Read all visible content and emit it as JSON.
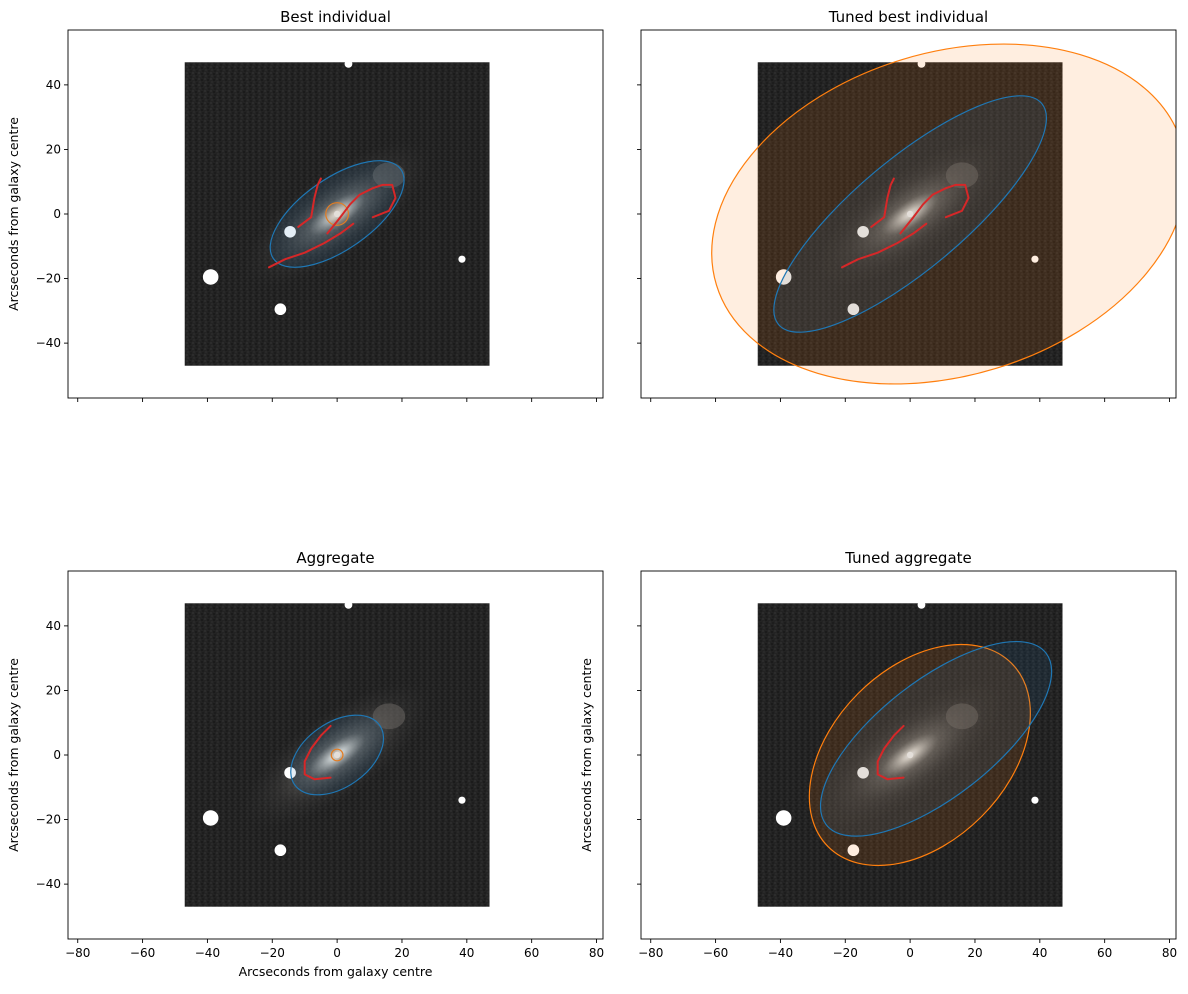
{
  "chart_data": [
    {
      "type": "image-overlay",
      "title": "Best individual",
      "xlabel": "",
      "ylabel": "Arcseconds from galaxy centre",
      "xlim": [
        -83,
        82
      ],
      "ylim": [
        -57,
        57
      ],
      "xticks": [
        -80,
        -60,
        -40,
        -20,
        0,
        20,
        40,
        60,
        80
      ],
      "xtick_labels_visible": false,
      "yticks": [
        -40,
        -20,
        0,
        20,
        40
      ],
      "ytick_labels_visible": true,
      "image_extent": [
        -47,
        47,
        -47,
        47
      ],
      "disc": {
        "cx": 0,
        "cy": 0,
        "rx": 24,
        "ry": 11,
        "angle": 35,
        "color": "#1f77b4"
      },
      "bulge": {
        "cx": 0,
        "cy": 0,
        "rx": 3.5,
        "ry": 3.5,
        "angle": 0,
        "color": "#ff7f0e"
      },
      "arms": [
        {
          "color": "#d62728",
          "points": [
            [
              -21,
              -16.5
            ],
            [
              -16,
              -14
            ],
            [
              -10,
              -12
            ],
            [
              -4,
              -9
            ],
            [
              1,
              -6
            ],
            [
              5,
              -3
            ]
          ]
        },
        {
          "color": "#d62728",
          "points": [
            [
              -12,
              -4
            ],
            [
              -8,
              -1
            ],
            [
              -7,
              5
            ],
            [
              -6,
              9
            ],
            [
              -5,
              11
            ]
          ]
        },
        {
          "color": "#d62728",
          "points": [
            [
              -3,
              -6
            ],
            [
              1,
              -1
            ],
            [
              4,
              3
            ],
            [
              7,
              6
            ],
            [
              11,
              8
            ],
            [
              14,
              9
            ],
            [
              17,
              9
            ],
            [
              18,
              5
            ],
            [
              16,
              1
            ],
            [
              11,
              -1
            ]
          ]
        }
      ]
    },
    {
      "type": "image-overlay",
      "title": "Tuned best individual",
      "xlabel": "",
      "ylabel": "",
      "xlim": [
        -83,
        82
      ],
      "ylim": [
        -57,
        57
      ],
      "xticks": [
        -80,
        -60,
        -40,
        -20,
        0,
        20,
        40,
        60,
        80
      ],
      "xtick_labels_visible": false,
      "yticks": [
        -40,
        -20,
        0,
        20,
        40
      ],
      "ytick_labels_visible": false,
      "image_extent": [
        -47,
        47,
        -47,
        47
      ],
      "disc": {
        "cx": 0,
        "cy": 0,
        "rx": 53,
        "ry": 17,
        "angle": 40,
        "color": "#1f77b4"
      },
      "bulge": {
        "cx": 12,
        "cy": 0,
        "rx": 75,
        "ry": 50,
        "angle": 17,
        "color": "#ff7f0e"
      },
      "arms": [
        {
          "color": "#d62728",
          "points": [
            [
              -21,
              -16.5
            ],
            [
              -16,
              -14
            ],
            [
              -10,
              -12
            ],
            [
              -4,
              -9
            ],
            [
              1,
              -6
            ],
            [
              5,
              -3
            ]
          ]
        },
        {
          "color": "#d62728",
          "points": [
            [
              -12,
              -4
            ],
            [
              -8,
              -1
            ],
            [
              -7,
              5
            ],
            [
              -6,
              9
            ],
            [
              -5,
              11
            ]
          ]
        },
        {
          "color": "#d62728",
          "points": [
            [
              -3,
              -6
            ],
            [
              1,
              -1
            ],
            [
              4,
              3
            ],
            [
              7,
              6
            ],
            [
              11,
              8
            ],
            [
              14,
              9
            ],
            [
              17,
              9
            ],
            [
              18,
              5
            ],
            [
              16,
              1
            ],
            [
              11,
              -1
            ]
          ]
        }
      ]
    },
    {
      "type": "image-overlay",
      "title": "Aggregate",
      "xlabel": "Arcseconds from galaxy centre",
      "ylabel": "Arcseconds from galaxy centre",
      "xlim": [
        -83,
        82
      ],
      "ylim": [
        -57,
        57
      ],
      "xticks": [
        -80,
        -60,
        -40,
        -20,
        0,
        20,
        40,
        60,
        80
      ],
      "xtick_labels_visible": true,
      "yticks": [
        -40,
        -20,
        0,
        20,
        40
      ],
      "ytick_labels_visible": true,
      "image_extent": [
        -47,
        47,
        -47,
        47
      ],
      "disc": {
        "cx": 0,
        "cy": 0,
        "rx": 16,
        "ry": 10,
        "angle": 35,
        "color": "#1f77b4"
      },
      "bulge": {
        "cx": 0,
        "cy": 0,
        "rx": 1.8,
        "ry": 1.8,
        "angle": 0,
        "color": "#ff7f0e"
      },
      "arms": [
        {
          "color": "#d62728",
          "points": [
            [
              -2,
              9
            ],
            [
              -5,
              6
            ],
            [
              -8,
              2
            ],
            [
              -10,
              -2
            ],
            [
              -10,
              -6
            ],
            [
              -7,
              -7.5
            ],
            [
              -2,
              -7
            ]
          ]
        }
      ]
    },
    {
      "type": "image-overlay",
      "title": "Tuned aggregate",
      "xlabel": "",
      "ylabel": "Arcseconds from galaxy centre",
      "xlim": [
        -83,
        82
      ],
      "ylim": [
        -57,
        57
      ],
      "xticks": [
        -80,
        -60,
        -40,
        -20,
        0,
        20,
        40,
        60,
        80
      ],
      "xtick_labels_visible": true,
      "yticks": [
        -40,
        -20,
        0,
        20,
        40
      ],
      "ytick_labels_visible": false,
      "image_extent": [
        -47,
        47,
        -47,
        47
      ],
      "disc": {
        "cx": 8,
        "cy": 5,
        "rx": 43,
        "ry": 18,
        "angle": 38,
        "color": "#1f77b4"
      },
      "bulge": {
        "cx": 3,
        "cy": 0,
        "rx": 40,
        "ry": 27,
        "angle": 45,
        "color": "#ff7f0e"
      },
      "arms": [
        {
          "color": "#d62728",
          "points": [
            [
              -2,
              9
            ],
            [
              -5,
              6
            ],
            [
              -8,
              2
            ],
            [
              -10,
              -2
            ],
            [
              -10,
              -6
            ],
            [
              -7,
              -7.5
            ],
            [
              -2,
              -7
            ]
          ]
        }
      ]
    }
  ],
  "galaxy_image": {
    "background_color": "#222222",
    "stars": [
      [
        3.5,
        46.5,
        1.2
      ],
      [
        -14.5,
        -5.5,
        1.8
      ],
      [
        -39,
        -19.5,
        2.4
      ],
      [
        -17.5,
        -29.5,
        1.8
      ],
      [
        38.5,
        -14,
        1.1
      ]
    ],
    "core_color": "#ffffff"
  }
}
